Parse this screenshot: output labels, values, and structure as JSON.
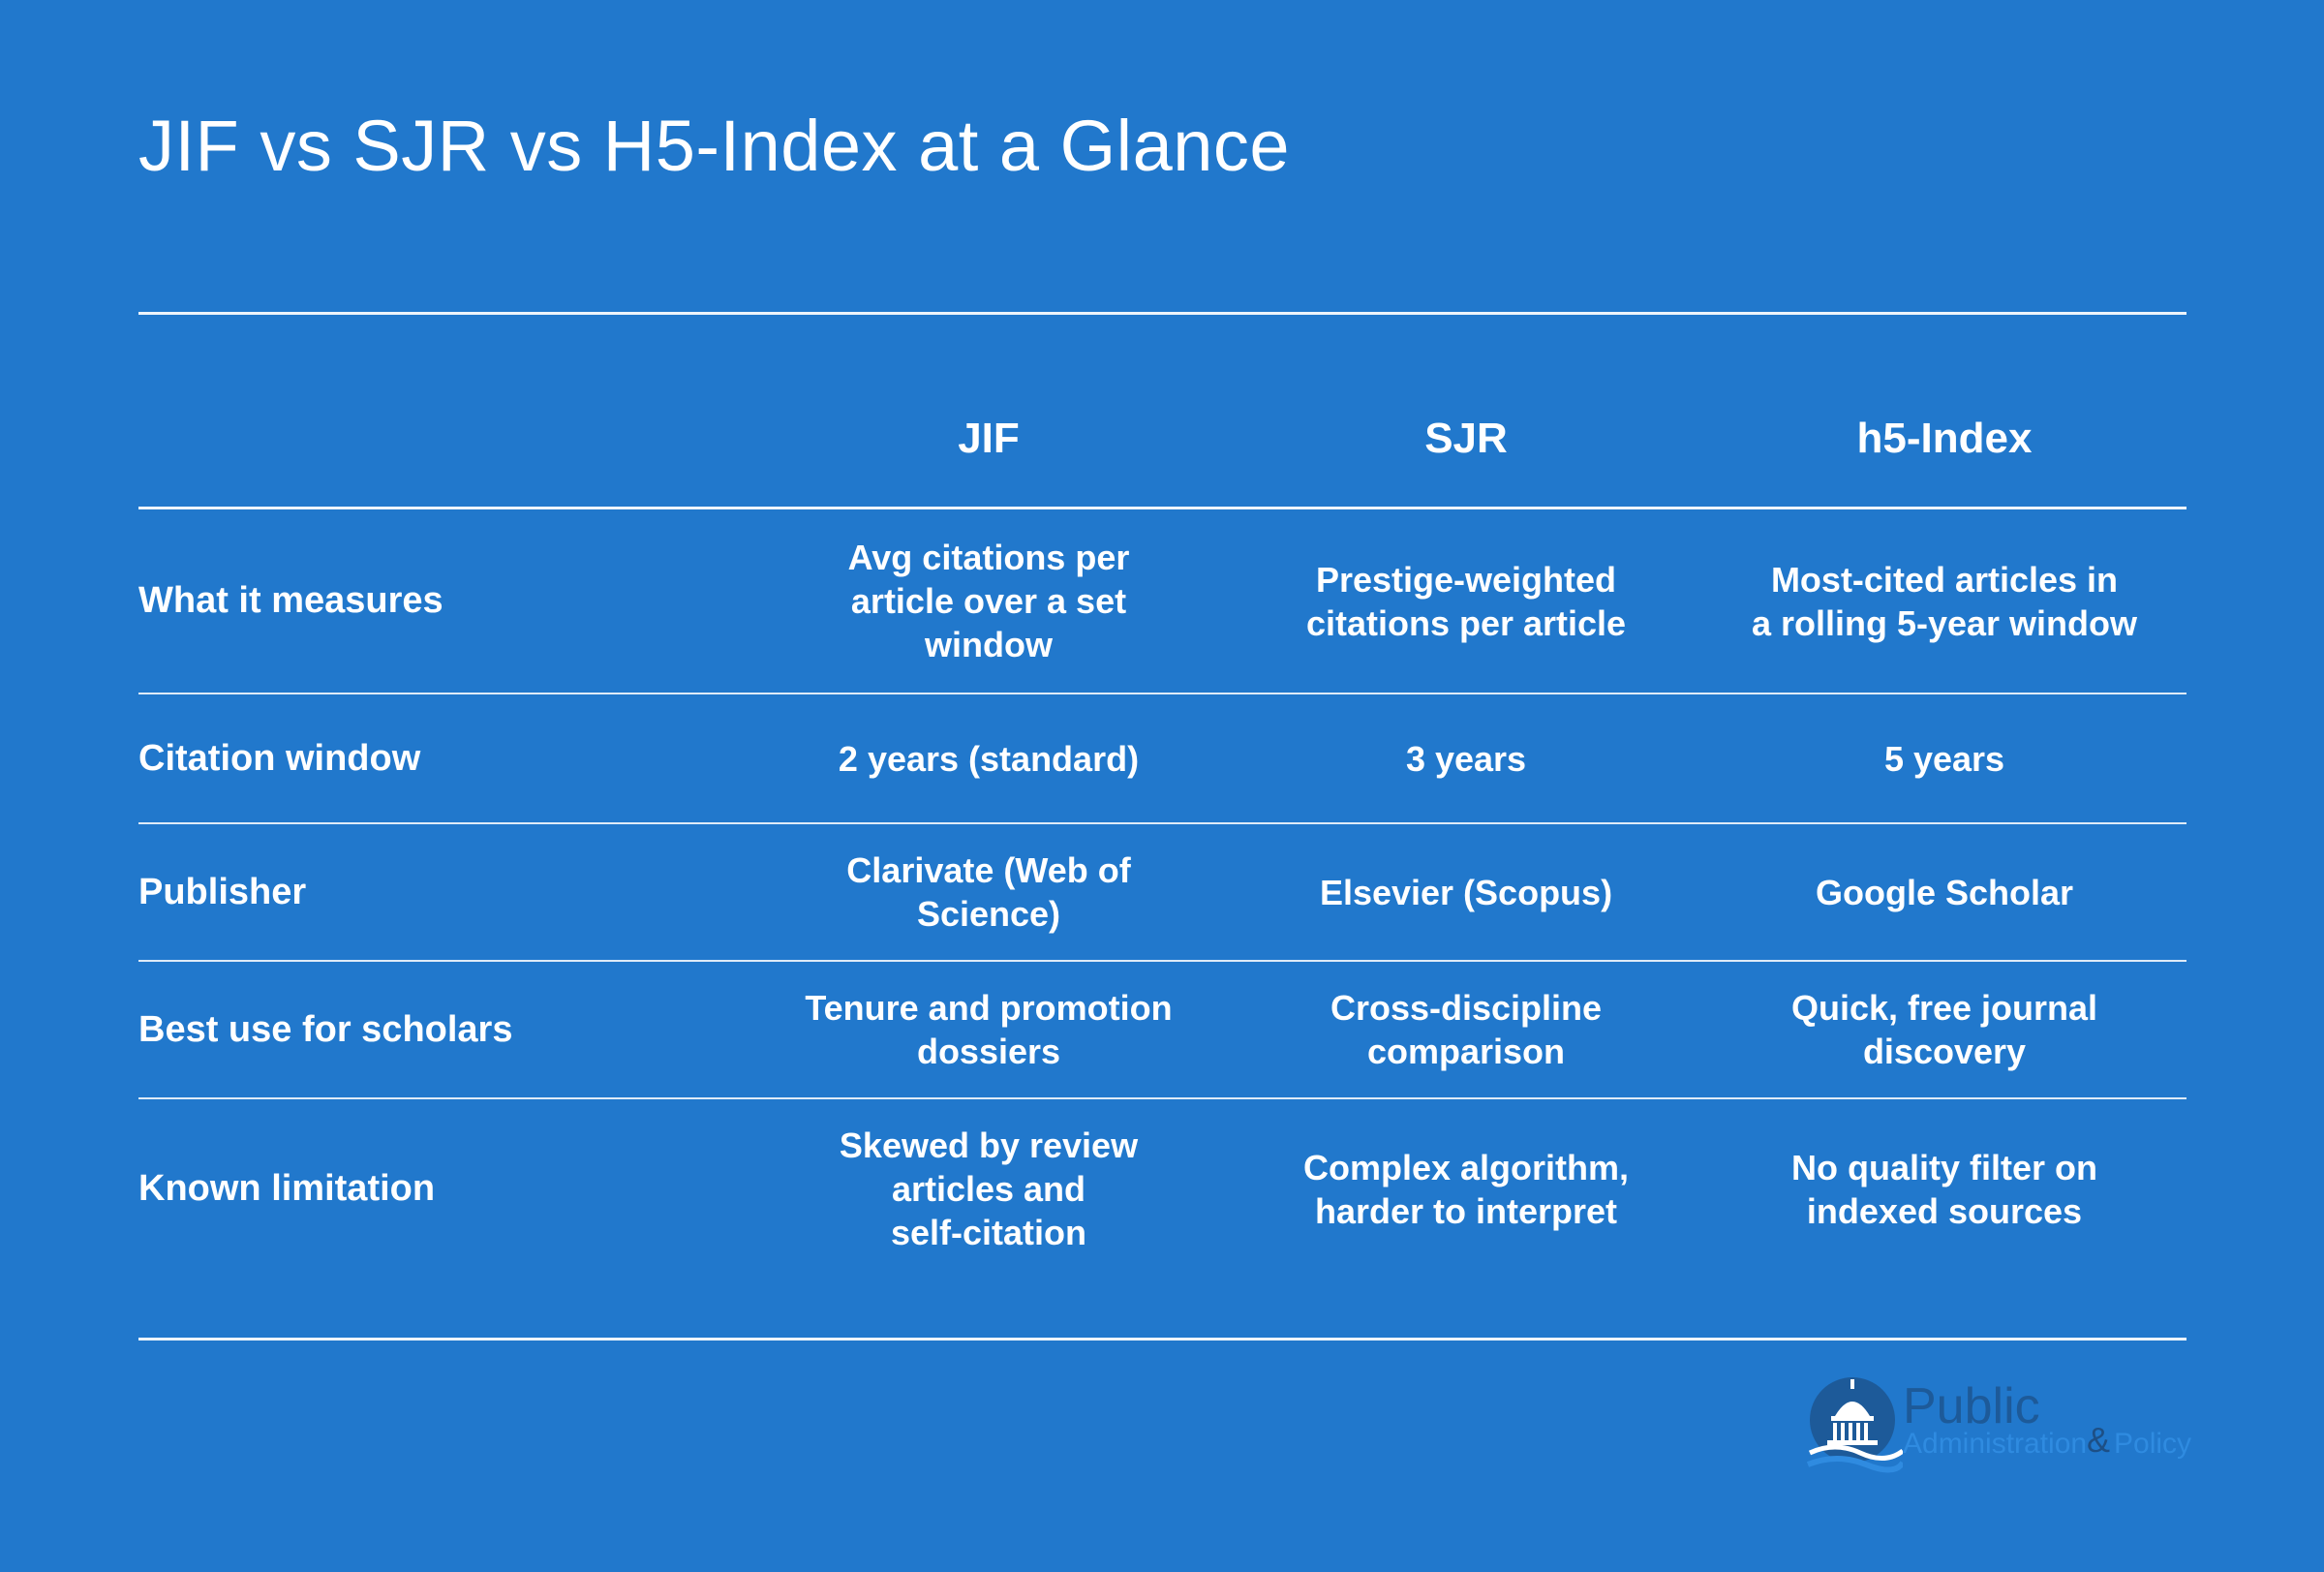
{
  "title": "JIF vs SJR vs H5-Index at a Glance",
  "columns": [
    "JIF",
    "SJR",
    "h5-Index"
  ],
  "rows": [
    {
      "label": "What it measures",
      "cells": [
        [
          "Avg citations per",
          "article over a set",
          "window"
        ],
        [
          "Prestige-weighted",
          "citations per article"
        ],
        [
          "Most-cited articles in",
          "a rolling 5-year window"
        ]
      ]
    },
    {
      "label": "Citation window",
      "cells": [
        [
          "2 years (standard)"
        ],
        [
          "3 years"
        ],
        [
          "5 years"
        ]
      ]
    },
    {
      "label": "Publisher",
      "cells": [
        [
          "Clarivate (Web of",
          "Science)"
        ],
        [
          "Elsevier (Scopus)"
        ],
        [
          "Google Scholar"
        ]
      ]
    },
    {
      "label": "Best use for scholars",
      "cells": [
        [
          "Tenure and promotion",
          "dossiers"
        ],
        [
          "Cross-discipline",
          "comparison"
        ],
        [
          "Quick, free journal",
          "discovery"
        ]
      ]
    },
    {
      "label": "Known limitation",
      "cells": [
        [
          "Skewed by review",
          "articles and",
          "self-citation"
        ],
        [
          "Complex algorithm,",
          "harder to interpret"
        ],
        [
          "No quality filter on",
          "indexed sources"
        ]
      ]
    }
  ],
  "logo": {
    "word": "Public",
    "sub": "Administration",
    "amp": "&",
    "sub2": "Policy"
  },
  "colors": {
    "background": "#2178cc",
    "text": "#ffffff",
    "logo_dark": "#1d5a99",
    "logo_light": "#2f8be0"
  }
}
